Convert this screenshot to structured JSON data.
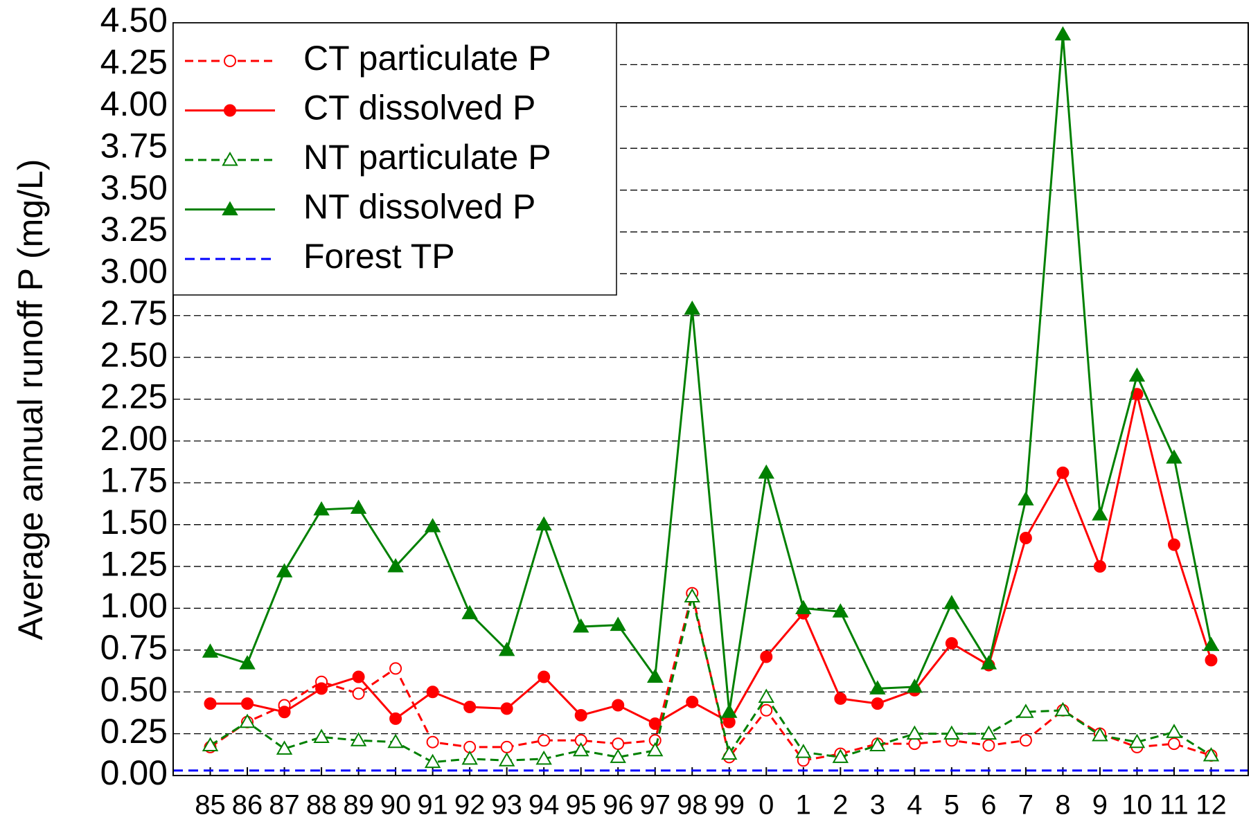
{
  "chart_data": {
    "type": "line",
    "ylabel": "Average annual runoff P  (mg/L)",
    "categories": [
      "85",
      "86",
      "87",
      "88",
      "89",
      "90",
      "91",
      "92",
      "93",
      "94",
      "95",
      "96",
      "97",
      "98",
      "99",
      "0",
      "1",
      "2",
      "3",
      "4",
      "5",
      "6",
      "7",
      "8",
      "9",
      "10",
      "11",
      "12"
    ],
    "series": [
      {
        "name": "CT particulate P",
        "color": "#ff0000",
        "marker": "circle",
        "filled": false,
        "dashed": true,
        "values": [
          0.17,
          0.32,
          0.42,
          0.56,
          0.49,
          0.64,
          0.2,
          0.17,
          0.17,
          0.21,
          0.21,
          0.19,
          0.21,
          1.09,
          0.11,
          0.39,
          0.09,
          0.13,
          0.19,
          0.19,
          0.21,
          0.18,
          0.21,
          0.39,
          0.25,
          0.17,
          0.19,
          0.12
        ]
      },
      {
        "name": "CT dissolved P",
        "color": "#ff0000",
        "marker": "circle",
        "filled": true,
        "dashed": false,
        "values": [
          0.43,
          0.43,
          0.38,
          0.52,
          0.59,
          0.34,
          0.5,
          0.41,
          0.4,
          0.59,
          0.36,
          0.42,
          0.31,
          0.44,
          0.32,
          0.71,
          0.97,
          0.46,
          0.43,
          0.51,
          0.79,
          0.66,
          1.42,
          1.81,
          1.25,
          2.28,
          1.38,
          0.69
        ]
      },
      {
        "name": "NT particulate P",
        "color": "#008000",
        "marker": "triangle",
        "filled": false,
        "dashed": true,
        "values": [
          0.18,
          0.32,
          0.16,
          0.23,
          0.21,
          0.2,
          0.08,
          0.1,
          0.09,
          0.1,
          0.15,
          0.11,
          0.15,
          1.07,
          0.13,
          0.47,
          0.14,
          0.11,
          0.18,
          0.25,
          0.25,
          0.25,
          0.38,
          0.39,
          0.24,
          0.2,
          0.26,
          0.12
        ]
      },
      {
        "name": "NT dissolved P",
        "color": "#008000",
        "marker": "triangle",
        "filled": true,
        "dashed": false,
        "values": [
          0.74,
          0.67,
          1.22,
          1.59,
          1.6,
          1.25,
          1.49,
          0.97,
          0.75,
          1.5,
          0.89,
          0.9,
          0.59,
          2.79,
          0.38,
          1.81,
          1.0,
          0.98,
          0.52,
          0.53,
          1.03,
          0.67,
          1.65,
          4.43,
          1.56,
          2.39,
          1.9,
          0.78
        ]
      }
    ],
    "reference_lines": [
      {
        "name": "Forest TP",
        "value": 0.03,
        "color": "#0000ff",
        "dashed": true
      }
    ],
    "ylim": [
      0,
      4.5
    ],
    "yticks": [
      {
        "value": 0,
        "label": "0.00"
      },
      {
        "value": 0.25,
        "label": "0.25"
      },
      {
        "value": 0.5,
        "label": "0.50"
      },
      {
        "value": 0.75,
        "label": "0.75"
      },
      {
        "value": 1,
        "label": "1.00"
      },
      {
        "value": 1.25,
        "label": "1.25"
      },
      {
        "value": 1.5,
        "label": "1.50"
      },
      {
        "value": 1.75,
        "label": "1.75"
      },
      {
        "value": 2,
        "label": "2.00"
      },
      {
        "value": 2.25,
        "label": "2.25"
      },
      {
        "value": 2.5,
        "label": "2.50"
      },
      {
        "value": 2.75,
        "label": "2.75"
      },
      {
        "value": 3,
        "label": "3.00"
      },
      {
        "value": 3.25,
        "label": "3.25"
      },
      {
        "value": 3.5,
        "label": "3.50"
      },
      {
        "value": 3.75,
        "label": "3.75"
      },
      {
        "value": 4,
        "label": "4.00"
      },
      {
        "value": 4.25,
        "label": "4.25"
      },
      {
        "value": 4.5,
        "label": "4.50"
      }
    ],
    "grid": true,
    "legend": "upper left"
  }
}
